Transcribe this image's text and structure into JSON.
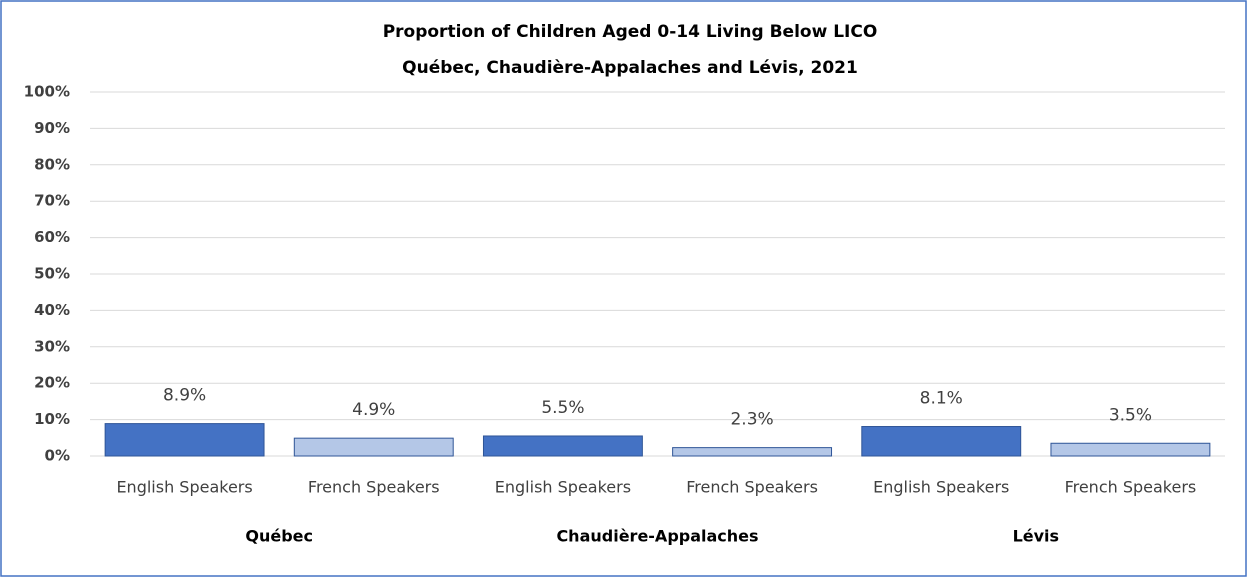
{
  "chart_data": {
    "type": "bar",
    "title": [
      "Proportion of Children Aged 0-14 Living Below LICO",
      "Québec, Chaudière-Appalaches  and Lévis, 2021"
    ],
    "categories": [
      "English Speakers",
      "French Speakers",
      "English Speakers",
      "French Speakers",
      "English Speakers",
      "French Speakers"
    ],
    "groups": [
      "Québec",
      "Chaudière-Appalaches",
      "Lévis"
    ],
    "values": [
      8.9,
      4.9,
      5.5,
      2.3,
      8.1,
      3.5
    ],
    "value_labels": [
      "8.9%",
      "4.9%",
      "5.5%",
      "2.3%",
      "8.1%",
      "3.5%"
    ],
    "colors": [
      "#4472c4",
      "#b4c7e7",
      "#4472c4",
      "#b4c7e7",
      "#4472c4",
      "#b4c7e7"
    ],
    "ylim": [
      0,
      100
    ],
    "yticks": [
      {
        "value": 0,
        "label": "0%"
      },
      {
        "value": 10,
        "label": "10%"
      },
      {
        "value": 20,
        "label": "20%"
      },
      {
        "value": 30,
        "label": "30%"
      },
      {
        "value": 40,
        "label": "40%"
      },
      {
        "value": 50,
        "label": "50%"
      },
      {
        "value": 60,
        "label": "60%"
      },
      {
        "value": 70,
        "label": "70%"
      },
      {
        "value": 80,
        "label": "80%"
      },
      {
        "value": 90,
        "label": "90%"
      },
      {
        "value": 100,
        "label": "100%"
      }
    ],
    "grid": true
  }
}
